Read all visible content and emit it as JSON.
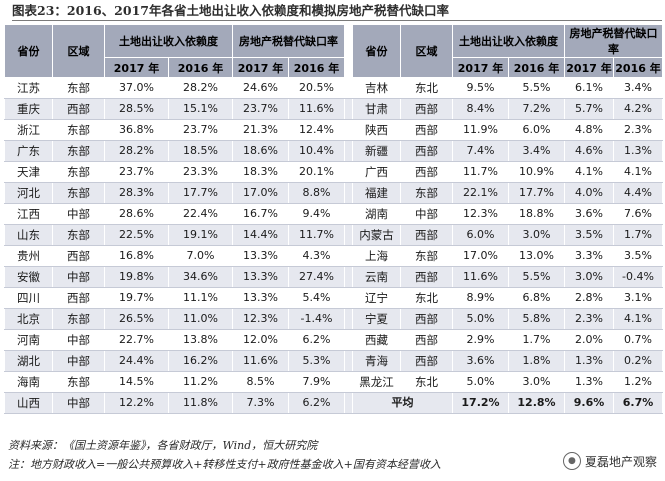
{
  "title": "图表23：2016、2017年各省土地出让收入依赖度和模拟房地产税替代缺口率",
  "headers": {
    "province": "省份",
    "region": "区域",
    "dependency": "土地出让收入依赖度",
    "gap": "房地产税替代缺口率",
    "y2017": "2017 年",
    "y2016": "2016 年"
  },
  "rows": [
    {
      "l": [
        "江苏",
        "东部",
        "37.0%",
        "28.2%",
        "24.6%",
        "20.5%"
      ],
      "r": [
        "吉林",
        "东北",
        "9.5%",
        "5.5%",
        "6.1%",
        "3.4%"
      ]
    },
    {
      "l": [
        "重庆",
        "西部",
        "28.5%",
        "15.1%",
        "23.7%",
        "11.6%"
      ],
      "r": [
        "甘肃",
        "西部",
        "8.4%",
        "7.2%",
        "5.7%",
        "4.2%"
      ]
    },
    {
      "l": [
        "浙江",
        "东部",
        "36.8%",
        "23.7%",
        "21.3%",
        "12.4%"
      ],
      "r": [
        "陕西",
        "西部",
        "11.9%",
        "6.0%",
        "4.8%",
        "2.3%"
      ]
    },
    {
      "l": [
        "广东",
        "东部",
        "28.2%",
        "18.5%",
        "18.6%",
        "10.4%"
      ],
      "r": [
        "新疆",
        "西部",
        "7.4%",
        "3.4%",
        "4.6%",
        "1.3%"
      ]
    },
    {
      "l": [
        "天津",
        "东部",
        "23.7%",
        "23.3%",
        "18.3%",
        "20.1%"
      ],
      "r": [
        "广西",
        "西部",
        "11.7%",
        "10.9%",
        "4.1%",
        "4.1%"
      ]
    },
    {
      "l": [
        "河北",
        "东部",
        "28.3%",
        "17.7%",
        "17.0%",
        "8.8%"
      ],
      "r": [
        "福建",
        "东部",
        "22.1%",
        "17.7%",
        "4.0%",
        "4.4%"
      ]
    },
    {
      "l": [
        "江西",
        "中部",
        "28.6%",
        "22.4%",
        "16.7%",
        "9.4%"
      ],
      "r": [
        "湖南",
        "中部",
        "12.3%",
        "18.8%",
        "3.6%",
        "7.6%"
      ]
    },
    {
      "l": [
        "山东",
        "东部",
        "22.5%",
        "19.1%",
        "14.4%",
        "11.7%"
      ],
      "r": [
        "内蒙古",
        "西部",
        "6.0%",
        "3.0%",
        "3.5%",
        "1.7%"
      ]
    },
    {
      "l": [
        "贵州",
        "西部",
        "16.8%",
        "7.0%",
        "13.3%",
        "4.3%"
      ],
      "r": [
        "上海",
        "东部",
        "17.0%",
        "13.0%",
        "3.3%",
        "3.5%"
      ]
    },
    {
      "l": [
        "安徽",
        "中部",
        "19.8%",
        "34.6%",
        "13.3%",
        "27.4%"
      ],
      "r": [
        "云南",
        "西部",
        "11.6%",
        "5.5%",
        "3.0%",
        "-0.4%"
      ]
    },
    {
      "l": [
        "四川",
        "西部",
        "19.7%",
        "11.1%",
        "13.3%",
        "5.4%"
      ],
      "r": [
        "辽宁",
        "东北",
        "8.9%",
        "6.8%",
        "2.8%",
        "3.1%"
      ]
    },
    {
      "l": [
        "北京",
        "东部",
        "26.5%",
        "11.0%",
        "12.3%",
        "-1.4%"
      ],
      "r": [
        "宁夏",
        "西部",
        "5.0%",
        "5.8%",
        "2.3%",
        "4.1%"
      ]
    },
    {
      "l": [
        "河南",
        "中部",
        "22.7%",
        "13.8%",
        "12.0%",
        "6.2%"
      ],
      "r": [
        "西藏",
        "西部",
        "2.9%",
        "1.7%",
        "2.0%",
        "0.7%"
      ]
    },
    {
      "l": [
        "湖北",
        "中部",
        "24.4%",
        "16.2%",
        "11.6%",
        "5.3%"
      ],
      "r": [
        "青海",
        "西部",
        "3.6%",
        "1.8%",
        "1.3%",
        "0.2%"
      ]
    },
    {
      "l": [
        "海南",
        "东部",
        "14.5%",
        "11.2%",
        "8.5%",
        "7.9%"
      ],
      "r": [
        "黑龙江",
        "东北",
        "5.0%",
        "3.0%",
        "1.3%",
        "1.2%"
      ]
    }
  ],
  "last_row": {
    "l": [
      "山西",
      "中部",
      "12.2%",
      "11.8%",
      "7.3%",
      "6.2%"
    ],
    "avg_label": "平均",
    "avg": [
      "17.2%",
      "12.8%",
      "9.6%",
      "6.7%"
    ]
  },
  "footnotes": {
    "source": "资料来源：《国土资源年鉴》，各省财政厅，Wind，恒大研究院",
    "note": "注：地方财政收入=一般公共预算收入+转移性支付+政府性基金收入+国有资本经营收入"
  },
  "watermark": {
    "text": "夏磊地产观察",
    "icon": "wechat-logo-icon"
  },
  "colors": {
    "header_bg": "#a3a9ba",
    "stripe_bg": "#e6e8ef"
  }
}
